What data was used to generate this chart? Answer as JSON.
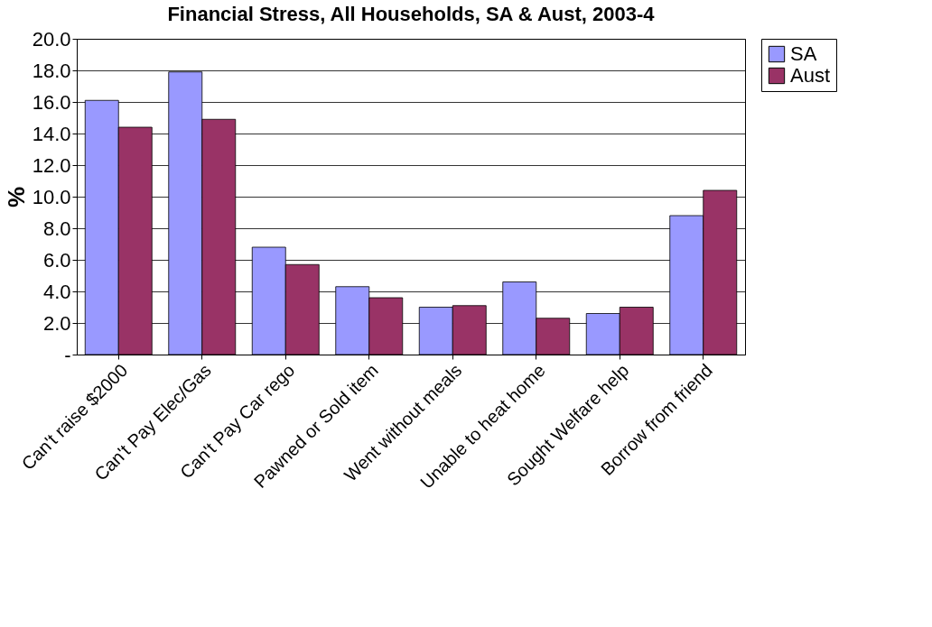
{
  "chart_data": {
    "type": "bar",
    "title": "Financial Stress, All Households, SA & Aust, 2003-4",
    "ylabel": "%",
    "categories": [
      "Can't raise $2000",
      "Can't Pay Elec/Gas",
      "Can't Pay Car rego",
      "Pawned or Sold item",
      "Went without meals",
      "Unable to heat home",
      "Sought Welfare help",
      "Borrow from friend"
    ],
    "series": [
      {
        "name": "SA",
        "color": "#9999ff",
        "values": [
          16.1,
          17.9,
          6.8,
          4.3,
          3.0,
          4.6,
          2.6,
          8.8
        ]
      },
      {
        "name": "Aust",
        "color": "#993366",
        "values": [
          14.4,
          14.9,
          5.7,
          3.6,
          3.1,
          2.3,
          3.0,
          10.4
        ]
      }
    ],
    "ylim": [
      0,
      20
    ],
    "yticks": [
      {
        "value": 0,
        "label": "-"
      },
      {
        "value": 2,
        "label": "2.0"
      },
      {
        "value": 4,
        "label": "4.0"
      },
      {
        "value": 6,
        "label": "6.0"
      },
      {
        "value": 8,
        "label": "8.0"
      },
      {
        "value": 10,
        "label": "10.0"
      },
      {
        "value": 12,
        "label": "12.0"
      },
      {
        "value": 14,
        "label": "14.0"
      },
      {
        "value": 16,
        "label": "16.0"
      },
      {
        "value": 18,
        "label": "18.0"
      },
      {
        "value": 20,
        "label": "20.0"
      }
    ],
    "grid": "y",
    "legend": "right"
  }
}
